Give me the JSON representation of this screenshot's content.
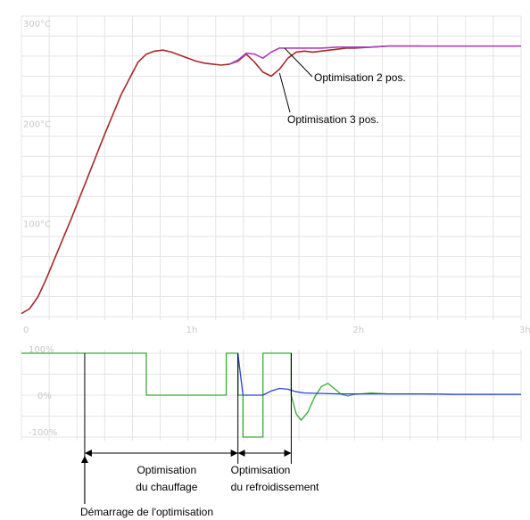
{
  "chart_data": [
    {
      "type": "line",
      "title": "",
      "xlabel": "",
      "ylabel": "",
      "x_unit": "h",
      "xlim": [
        0,
        3
      ],
      "ylim": [
        0,
        300
      ],
      "grid": true,
      "x_ticks": [
        {
          "value": 0,
          "label": "0"
        },
        {
          "value": 1,
          "label": "1h"
        },
        {
          "value": 2,
          "label": "2h"
        },
        {
          "value": 3,
          "label": "3h"
        }
      ],
      "y_ticks": [
        {
          "value": 100,
          "label": "100°C"
        },
        {
          "value": 200,
          "label": "200°C"
        },
        {
          "value": 300,
          "label": "300°C"
        }
      ],
      "colors": {
        "three_pos": "#a52a2a",
        "two_pos": "#b040c0"
      },
      "series": [
        {
          "name": "",
          "color": "#a52a2a",
          "x": [
            0,
            0.05,
            0.1,
            0.15,
            0.2,
            0.3,
            0.4,
            0.5,
            0.6,
            0.7,
            0.75,
            0.8,
            0.85,
            0.9,
            0.95,
            1.0,
            1.05,
            1.1,
            1.15,
            1.2,
            1.25,
            1.3,
            1.35,
            1.4,
            1.45,
            1.5,
            1.55,
            1.6,
            1.65,
            1.7,
            1.75,
            1.8,
            1.85,
            1.9,
            1.95,
            2.0,
            2.1,
            2.2,
            2.3,
            2.4
          ],
          "y": [
            3,
            8,
            20,
            38,
            58,
            98,
            140,
            182,
            222,
            254,
            262,
            265,
            266,
            264,
            261,
            258,
            255,
            253,
            252,
            251,
            252,
            255,
            262,
            254,
            244,
            240,
            247,
            258,
            264,
            265,
            264,
            265,
            266,
            267,
            268,
            268,
            269,
            270,
            270,
            270
          ]
        },
        {
          "name": "",
          "color": "#b040c0",
          "x": [
            1.25,
            1.3,
            1.35,
            1.4,
            1.45,
            1.5,
            1.55,
            1.6,
            1.7,
            1.8,
            1.9,
            2.0,
            2.1,
            2.2,
            2.3,
            2.4,
            2.6,
            2.8,
            3.0
          ],
          "y": [
            252,
            256,
            263,
            262,
            258,
            264,
            268,
            268,
            268,
            268,
            269,
            269,
            269,
            270,
            270,
            270,
            270,
            270,
            270
          ]
        }
      ],
      "annotations": [
        {
          "text": "Optimisation 2 pos.",
          "target_x": 1.58,
          "target_y": 268
        },
        {
          "text": "Optimisation 3 pos.",
          "target_x": 1.55,
          "target_y": 243
        }
      ]
    },
    {
      "type": "line",
      "title": "",
      "xlabel": "",
      "ylabel": "",
      "x_unit": "h",
      "xlim": [
        0,
        3
      ],
      "ylim": [
        -100,
        100
      ],
      "grid": true,
      "y_ticks": [
        {
          "value": 100,
          "label": "100%"
        },
        {
          "value": 0,
          "label": "0%"
        },
        {
          "value": -100,
          "label": "-100%"
        }
      ],
      "colors": {
        "output": "#3aaa35",
        "cooling": "#3040d8"
      },
      "series": [
        {
          "name": "",
          "color": "#3aaa35",
          "x": [
            0,
            0.75,
            0.75,
            1.23,
            1.23,
            1.3,
            1.3,
            1.33,
            1.33,
            1.45,
            1.45,
            1.62,
            1.62,
            1.65,
            1.68,
            1.72,
            1.76,
            1.8,
            1.84,
            1.88,
            1.92,
            1.96,
            2.0,
            2.1,
            2.2,
            2.4,
            2.6,
            2.8,
            3.0
          ],
          "y": [
            100,
            100,
            0,
            0,
            100,
            100,
            0,
            0,
            -100,
            -100,
            100,
            100,
            0,
            -45,
            -60,
            -40,
            -5,
            20,
            28,
            15,
            2,
            -2,
            2,
            5,
            3,
            3,
            2,
            2,
            2
          ]
        },
        {
          "name": "",
          "color": "#3040d8",
          "x": [
            1.3,
            1.33,
            1.4,
            1.45,
            1.5,
            1.55,
            1.6,
            1.65,
            1.7,
            1.8,
            1.9,
            2.0,
            2.2,
            2.4,
            2.6,
            2.8,
            3.0
          ],
          "y": [
            98,
            0,
            0,
            0,
            10,
            16,
            14,
            8,
            5,
            4,
            3,
            3,
            3,
            3,
            2,
            2,
            2
          ]
        }
      ],
      "phases": [
        {
          "text_lines": [
            "Optimisation",
            "du chauffage"
          ],
          "x_start": 0.38,
          "x_end": 1.3
        },
        {
          "text_lines": [
            "Optimisation",
            "du refroidissement"
          ],
          "x_start": 1.3,
          "x_end": 1.62
        }
      ],
      "start_marker": {
        "text": "Démarrage de l'optimisation",
        "x": 0.38
      }
    }
  ]
}
